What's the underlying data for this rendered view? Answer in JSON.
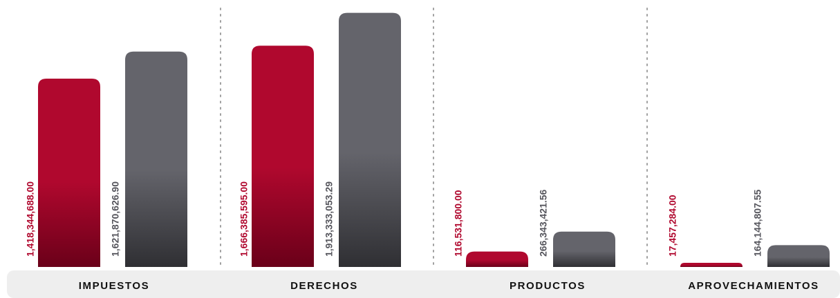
{
  "chart_data": {
    "type": "bar",
    "categories": [
      "IMPUESTOS",
      "DERECHOS",
      "PRODUCTOS",
      "APROVECHAMIENTOS"
    ],
    "series": [
      {
        "values": [
          1418344688.0,
          1666385595.0,
          116531800.0,
          17457284.0
        ],
        "labels": [
          "1,418,344,688.00",
          "1,666,385,595.00",
          "116,531,800.00",
          "17,457,284.00"
        ],
        "color": "#b0082e",
        "color_dark": "#6a0019"
      },
      {
        "values": [
          1621870626.9,
          1913333053.29,
          266343421.56,
          164144807.55
        ],
        "labels": [
          "1,621,870,626.90",
          "1,913,333,053.29",
          "266,343,421.56",
          "164,144,807.55"
        ],
        "color": "#64646b",
        "color_dark": "#2f2f33"
      }
    ],
    "ylim": [
      0,
      2000000000
    ],
    "grid": false,
    "legend": "none",
    "category_band_color": "#eeeeee",
    "separator_color": "#a0a0a0"
  }
}
